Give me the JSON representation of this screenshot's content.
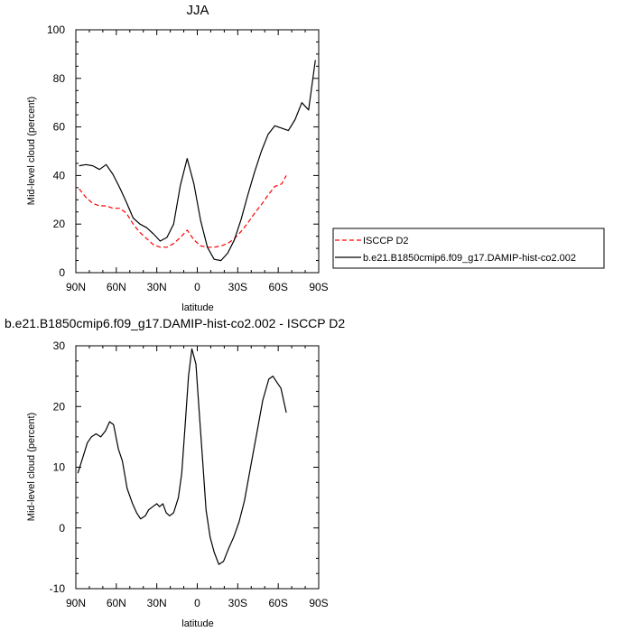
{
  "chart_data": [
    {
      "type": "line",
      "title": "JJA",
      "xlabel": "latitude",
      "ylabel": "Mid-level cloud (percent)",
      "xlim": [
        -90,
        90
      ],
      "ylim": [
        0,
        100
      ],
      "xticks": [
        -90,
        -60,
        -30,
        0,
        30,
        60,
        90
      ],
      "xtick_labels": [
        "90N",
        "60N",
        "30N",
        "0",
        "30S",
        "60S",
        "90S"
      ],
      "yticks": [
        0,
        20,
        40,
        60,
        80,
        100
      ],
      "ytick_labels": [
        "0",
        "20",
        "40",
        "60",
        "80",
        "100"
      ],
      "legend_position": "right",
      "series": [
        {
          "name": "ISCCP D2",
          "color": "#ff0000",
          "style": "dashed",
          "x": [
            -87.5,
            -82.5,
            -77.5,
            -72.5,
            -67.5,
            -62.5,
            -57.5,
            -52.5,
            -47.5,
            -42.5,
            -37.5,
            -32.5,
            -27.5,
            -22.5,
            -17.5,
            -12.5,
            -7.5,
            -2.5,
            2.5,
            7.5,
            12.5,
            17.5,
            22.5,
            27.5,
            32.5,
            37.5,
            42.5,
            47.5,
            52.5,
            57.5,
            62.5,
            66
          ],
          "y": [
            34.5,
            31,
            28.5,
            27.5,
            27.5,
            26.5,
            26.5,
            24.5,
            20,
            16.5,
            14,
            11.5,
            10.5,
            10.5,
            12,
            14.5,
            17.5,
            13.5,
            11,
            10.5,
            10.5,
            11,
            12,
            14,
            17,
            20.5,
            24.5,
            28,
            32,
            35.5,
            36.5,
            40
          ]
        },
        {
          "name": "b.e21.B1850cmip6.f09_g17.DAMIP-hist-co2.002",
          "color": "#000000",
          "style": "solid",
          "x": [
            -87.5,
            -82.5,
            -77.5,
            -72.5,
            -67.5,
            -62.5,
            -57.5,
            -52.5,
            -47.5,
            -42.5,
            -37.5,
            -32.5,
            -27.5,
            -22.5,
            -17.5,
            -12.5,
            -7.5,
            -2.5,
            2.5,
            7.5,
            12.5,
            17.5,
            22.5,
            27.5,
            32.5,
            37.5,
            42.5,
            47.5,
            52.5,
            57.5,
            62.5,
            67.5,
            72.5,
            77.5,
            82.5,
            87.5
          ],
          "y": [
            44,
            44.5,
            44,
            42.5,
            44.5,
            40.5,
            35,
            29,
            22.5,
            20,
            18.5,
            16,
            13,
            14.5,
            20,
            36,
            47,
            36.5,
            21.5,
            10.5,
            5.5,
            5,
            8,
            13.5,
            22,
            32,
            41.5,
            50,
            57,
            60.5,
            59.5,
            58.5,
            63,
            70,
            67,
            87.5
          ]
        }
      ]
    },
    {
      "type": "line",
      "title": "b.e21.B1850cmip6.f09_g17.DAMIP-hist-co2.002 - ISCCP D2",
      "xlabel": "latitude",
      "ylabel": "Mid-level cloud (percent)",
      "xlim": [
        -90,
        90
      ],
      "ylim": [
        -10,
        30
      ],
      "xticks": [
        -90,
        -60,
        -30,
        0,
        30,
        60,
        90
      ],
      "xtick_labels": [
        "90N",
        "60N",
        "30N",
        "0",
        "30S",
        "60S",
        "90S"
      ],
      "yticks": [
        -10,
        0,
        10,
        20,
        30
      ],
      "ytick_labels": [
        "-10",
        "0",
        "10",
        "20",
        "30"
      ],
      "series": [
        {
          "color": "#000000",
          "style": "solid",
          "x": [
            -88.5,
            -85,
            -81.5,
            -78.5,
            -75,
            -71.5,
            -68,
            -65,
            -62,
            -58.5,
            -55.5,
            -52,
            -48,
            -45,
            -42,
            -38.5,
            -36,
            -33,
            -30,
            -28,
            -25.5,
            -23,
            -20.5,
            -17.5,
            -14,
            -11.5,
            -9,
            -6.5,
            -4,
            -1,
            1.5,
            4,
            6.5,
            9.5,
            12.5,
            16,
            19.5,
            23,
            27,
            31,
            35,
            39.5,
            44,
            48.5,
            53,
            56,
            59,
            62,
            66
          ],
          "y": [
            9,
            11.5,
            14,
            15,
            15.5,
            15,
            16,
            17.5,
            17,
            13,
            11,
            6.5,
            4,
            2.5,
            1.5,
            2,
            3,
            3.5,
            4,
            3.5,
            4,
            2.5,
            2,
            2.5,
            5,
            9,
            17,
            25,
            29.5,
            27,
            19,
            11,
            3,
            -1.5,
            -4,
            -6,
            -5.5,
            -3.5,
            -1.5,
            1,
            4.5,
            10,
            15.5,
            21,
            24.5,
            25,
            24,
            23,
            19
          ]
        }
      ]
    }
  ]
}
